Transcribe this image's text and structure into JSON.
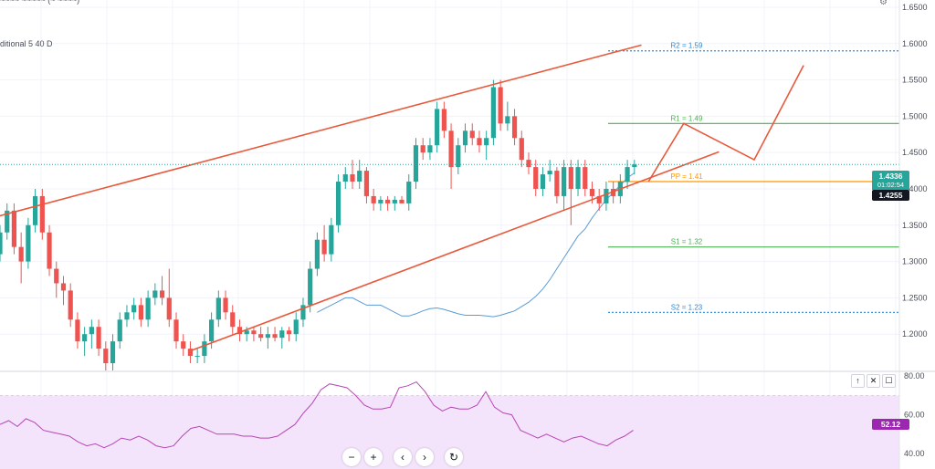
{
  "header": {
    "top_fragment": "~~~~ ~~~~~ (~ ~~~~)",
    "indicator_label": "ditional 5 40 D"
  },
  "toolbar": {
    "nav_zoom_out": "−",
    "nav_zoom_in": "+",
    "nav_left": "‹",
    "nav_right": "›",
    "nav_reset": "↻",
    "pane_up": "↑",
    "pane_close": "✕",
    "pane_maximize": "☐",
    "gear": "⚙"
  },
  "price_tags": {
    "current": "1.4336",
    "timer": "01:02:54",
    "pivot_tag": "1.4255",
    "rsi": "52.12"
  },
  "colors": {
    "bull": "#26a69a",
    "bear": "#ef5350",
    "channel": "#e8593b",
    "ma": "#5b9bd5",
    "r2": "#2a89d8",
    "r1": "#4caf50",
    "pp": "#ff9800",
    "s1": "#4caf50",
    "s2": "#2a89d8",
    "rsi_line": "#b845b5",
    "rsi_band": "#f3e4fb",
    "rsi_tag": "#9c27b0"
  },
  "chart_data": [
    {
      "type": "candlestick",
      "title": "",
      "ylim": [
        1.15,
        1.66
      ],
      "yticks": [
        "1.6500",
        "1.6000",
        "1.5500",
        "1.5000",
        "1.4500",
        "1.4000",
        "1.3500",
        "1.3000",
        "1.2500",
        "1.2000"
      ],
      "candles": [
        [
          1.31,
          1.35,
          1.3,
          1.34
        ],
        [
          1.34,
          1.38,
          1.33,
          1.37
        ],
        [
          1.37,
          1.38,
          1.31,
          1.32
        ],
        [
          1.32,
          1.34,
          1.27,
          1.3
        ],
        [
          1.3,
          1.36,
          1.29,
          1.35
        ],
        [
          1.35,
          1.4,
          1.34,
          1.39
        ],
        [
          1.39,
          1.4,
          1.33,
          1.34
        ],
        [
          1.34,
          1.35,
          1.28,
          1.29
        ],
        [
          1.29,
          1.3,
          1.25,
          1.27
        ],
        [
          1.27,
          1.28,
          1.24,
          1.26
        ],
        [
          1.26,
          1.27,
          1.21,
          1.22
        ],
        [
          1.22,
          1.23,
          1.18,
          1.19
        ],
        [
          1.19,
          1.21,
          1.17,
          1.2
        ],
        [
          1.2,
          1.22,
          1.18,
          1.21
        ],
        [
          1.21,
          1.22,
          1.17,
          1.18
        ],
        [
          1.18,
          1.19,
          1.15,
          1.16
        ],
        [
          1.16,
          1.2,
          1.15,
          1.19
        ],
        [
          1.19,
          1.23,
          1.18,
          1.22
        ],
        [
          1.22,
          1.24,
          1.21,
          1.23
        ],
        [
          1.23,
          1.25,
          1.22,
          1.24
        ],
        [
          1.24,
          1.25,
          1.21,
          1.22
        ],
        [
          1.22,
          1.26,
          1.21,
          1.25
        ],
        [
          1.25,
          1.27,
          1.24,
          1.26
        ],
        [
          1.26,
          1.28,
          1.24,
          1.25
        ],
        [
          1.25,
          1.29,
          1.21,
          1.22
        ],
        [
          1.22,
          1.23,
          1.18,
          1.19
        ],
        [
          1.19,
          1.2,
          1.17,
          1.18
        ],
        [
          1.18,
          1.19,
          1.16,
          1.17
        ],
        [
          1.17,
          1.18,
          1.16,
          1.17
        ],
        [
          1.17,
          1.2,
          1.16,
          1.19
        ],
        [
          1.19,
          1.23,
          1.18,
          1.22
        ],
        [
          1.22,
          1.26,
          1.21,
          1.25
        ],
        [
          1.25,
          1.26,
          1.22,
          1.23
        ],
        [
          1.23,
          1.24,
          1.2,
          1.21
        ],
        [
          1.21,
          1.22,
          1.19,
          1.2
        ],
        [
          1.2,
          1.21,
          1.19,
          1.205
        ],
        [
          1.205,
          1.21,
          1.19,
          1.2
        ],
        [
          1.2,
          1.21,
          1.19,
          1.195
        ],
        [
          1.195,
          1.21,
          1.18,
          1.2
        ],
        [
          1.2,
          1.21,
          1.19,
          1.195
        ],
        [
          1.195,
          1.21,
          1.18,
          1.205
        ],
        [
          1.205,
          1.21,
          1.19,
          1.2
        ],
        [
          1.2,
          1.23,
          1.19,
          1.22
        ],
        [
          1.22,
          1.25,
          1.21,
          1.24
        ],
        [
          1.24,
          1.3,
          1.23,
          1.29
        ],
        [
          1.29,
          1.34,
          1.28,
          1.33
        ],
        [
          1.33,
          1.35,
          1.3,
          1.31
        ],
        [
          1.31,
          1.36,
          1.3,
          1.35
        ],
        [
          1.35,
          1.42,
          1.34,
          1.41
        ],
        [
          1.41,
          1.43,
          1.4,
          1.42
        ],
        [
          1.42,
          1.44,
          1.4,
          1.41
        ],
        [
          1.41,
          1.44,
          1.4,
          1.425
        ],
        [
          1.425,
          1.43,
          1.38,
          1.39
        ],
        [
          1.39,
          1.4,
          1.37,
          1.38
        ],
        [
          1.38,
          1.39,
          1.37,
          1.385
        ],
        [
          1.385,
          1.39,
          1.37,
          1.38
        ],
        [
          1.38,
          1.39,
          1.37,
          1.385
        ],
        [
          1.385,
          1.39,
          1.38,
          1.38
        ],
        [
          1.38,
          1.42,
          1.37,
          1.41
        ],
        [
          1.41,
          1.47,
          1.4,
          1.46
        ],
        [
          1.46,
          1.47,
          1.44,
          1.45
        ],
        [
          1.45,
          1.47,
          1.44,
          1.46
        ],
        [
          1.46,
          1.52,
          1.45,
          1.51
        ],
        [
          1.51,
          1.52,
          1.47,
          1.48
        ],
        [
          1.48,
          1.49,
          1.4,
          1.43
        ],
        [
          1.43,
          1.47,
          1.42,
          1.46
        ],
        [
          1.46,
          1.49,
          1.45,
          1.48
        ],
        [
          1.48,
          1.49,
          1.46,
          1.47
        ],
        [
          1.47,
          1.48,
          1.45,
          1.46
        ],
        [
          1.46,
          1.48,
          1.44,
          1.47
        ],
        [
          1.47,
          1.55,
          1.46,
          1.54
        ],
        [
          1.54,
          1.55,
          1.48,
          1.49
        ],
        [
          1.49,
          1.52,
          1.48,
          1.5
        ],
        [
          1.5,
          1.51,
          1.46,
          1.47
        ],
        [
          1.47,
          1.48,
          1.43,
          1.44
        ],
        [
          1.44,
          1.45,
          1.42,
          1.43
        ],
        [
          1.43,
          1.44,
          1.39,
          1.4
        ],
        [
          1.4,
          1.43,
          1.39,
          1.42
        ],
        [
          1.42,
          1.44,
          1.41,
          1.425
        ],
        [
          1.425,
          1.43,
          1.38,
          1.39
        ],
        [
          1.39,
          1.44,
          1.37,
          1.43
        ],
        [
          1.43,
          1.44,
          1.35,
          1.4
        ],
        [
          1.4,
          1.44,
          1.39,
          1.43
        ],
        [
          1.43,
          1.44,
          1.39,
          1.4
        ],
        [
          1.4,
          1.41,
          1.38,
          1.39
        ],
        [
          1.39,
          1.4,
          1.37,
          1.38
        ],
        [
          1.38,
          1.41,
          1.37,
          1.4
        ],
        [
          1.4,
          1.41,
          1.38,
          1.39
        ],
        [
          1.39,
          1.42,
          1.38,
          1.41
        ],
        [
          1.41,
          1.44,
          1.4,
          1.43
        ],
        [
          1.43,
          1.44,
          1.42,
          1.4336
        ]
      ],
      "moving_average": [
        1.23,
        1.235,
        1.24,
        1.245,
        1.25,
        1.25,
        1.245,
        1.24,
        1.24,
        1.24,
        1.235,
        1.23,
        1.225,
        1.225,
        1.228,
        1.232,
        1.235,
        1.236,
        1.234,
        1.231,
        1.228,
        1.226,
        1.226,
        1.226,
        1.225,
        1.224,
        1.226,
        1.229,
        1.232,
        1.238,
        1.244,
        1.252,
        1.262,
        1.275,
        1.29,
        1.305,
        1.32,
        1.335,
        1.345,
        1.36,
        1.373,
        1.385,
        1.395,
        1.405,
        1.415,
        1.422
      ],
      "channel": {
        "upper": [
          [
            0,
            1.363
          ],
          [
            91,
            1.598
          ]
        ],
        "lower": [
          [
            27,
            1.177
          ],
          [
            102,
            1.451
          ]
        ]
      },
      "pivots": [
        {
          "label": "R2 = 1.59",
          "value": 1.59,
          "style": "dotted"
        },
        {
          "label": "R1 = 1.49",
          "value": 1.49,
          "style": "solid"
        },
        {
          "label": "PP = 1.41",
          "value": 1.41,
          "style": "solid"
        },
        {
          "label": "S1 = 1.32",
          "value": 1.32,
          "style": "solid"
        },
        {
          "label": "S2 = 1.23",
          "value": 1.23,
          "style": "dotted"
        }
      ],
      "forecast_path": [
        1.41,
        1.49,
        1.44,
        1.57
      ]
    },
    {
      "type": "line",
      "title": "",
      "ylim": [
        32,
        82
      ],
      "yticks": [
        "80.00",
        "60.00",
        "40.00"
      ],
      "band": [
        30,
        70
      ],
      "values": [
        55,
        57,
        54,
        58,
        56,
        52,
        51,
        50,
        49,
        46,
        44,
        45,
        43,
        45,
        48,
        47,
        49,
        47,
        44,
        43,
        44,
        49,
        53,
        54,
        52,
        50,
        50,
        50,
        49,
        49,
        48,
        48,
        49,
        52,
        55,
        61,
        66,
        73,
        76,
        75,
        74,
        70,
        65,
        63,
        63,
        64,
        74,
        75,
        77,
        72,
        65,
        62,
        64,
        63,
        63,
        65,
        72,
        64,
        61,
        60,
        52,
        50,
        48,
        50,
        48,
        46,
        48,
        49,
        47,
        45,
        44,
        47,
        49,
        52
      ]
    }
  ]
}
